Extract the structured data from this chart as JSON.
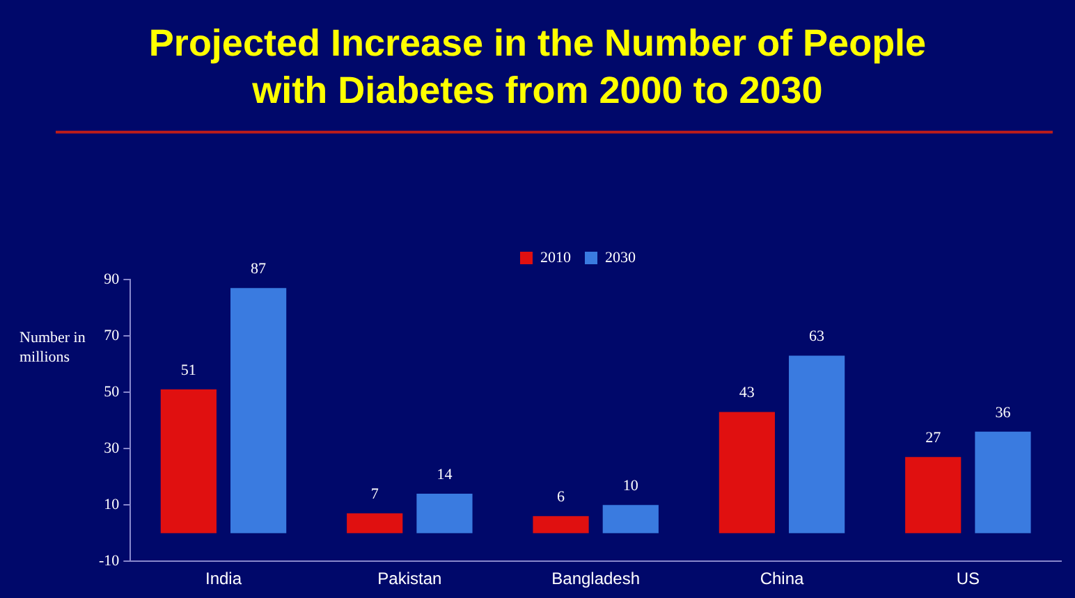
{
  "chart_data": {
    "type": "bar",
    "title": "Projected Increase in the Number of People with Diabetes from 2000 to 2030",
    "ylabel": "Number in millions",
    "categories": [
      "India",
      "Pakistan",
      "Bangladesh",
      "China",
      "US"
    ],
    "series": [
      {
        "name": "2010",
        "color": "#e01010",
        "values": [
          51,
          7,
          6,
          43,
          27
        ]
      },
      {
        "name": "2030",
        "color": "#3a7be0",
        "values": [
          87,
          14,
          10,
          63,
          36
        ]
      }
    ],
    "ylim": [
      -10,
      90
    ],
    "yticks": [
      -10,
      10,
      30,
      50,
      70,
      90
    ],
    "grid": false,
    "legend": "top",
    "data_labels": true
  }
}
